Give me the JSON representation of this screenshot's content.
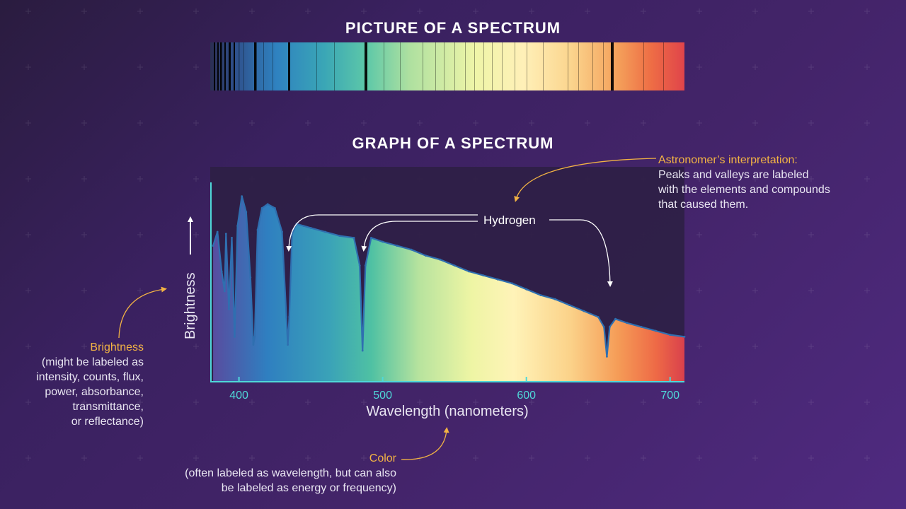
{
  "titles": {
    "picture": "PICTURE OF A SPECTRUM",
    "graph": "GRAPH OF A SPECTRUM"
  },
  "axes": {
    "x_label": "Wavelength (nanometers)",
    "y_label": "Brightness",
    "x_ticks": [
      "400",
      "500",
      "600",
      "700"
    ]
  },
  "annotations": {
    "hydrogen": "Hydrogen",
    "interpretation_title": "Astronomer’s interpretation:",
    "interpretation_lines": [
      "Peaks and valleys are labeled",
      "with the elements and compounds",
      "that caused them."
    ],
    "brightness_title": "Brightness",
    "brightness_lines": [
      "(might be labeled as",
      "intensity, counts, flux,",
      "power, absorbance,",
      "transmittance,",
      "or reflectance)"
    ],
    "color_title": "Color",
    "color_lines": [
      "(often labeled as wavelength, but can also",
      "be labeled as energy or frequency)"
    ]
  },
  "colors": {
    "accent": "#f2b344",
    "axis": "#4fd8d8",
    "curve": "#2f6fb0",
    "plot_bg": "#2e1f45"
  },
  "chart_data": {
    "type": "line",
    "x_unit": "nm",
    "xlim": [
      380,
      710
    ],
    "ylim": [
      0,
      1
    ],
    "x": [
      382,
      385,
      388,
      390,
      391,
      393,
      395,
      397,
      399,
      402,
      405,
      408,
      410,
      411,
      413,
      416,
      420,
      425,
      430,
      433,
      434,
      435,
      437,
      440,
      445,
      450,
      460,
      470,
      480,
      484,
      486,
      488,
      492,
      500,
      510,
      520,
      530,
      540,
      550,
      560,
      570,
      580,
      590,
      600,
      610,
      620,
      630,
      640,
      650,
      654,
      656,
      658,
      662,
      670,
      680,
      690,
      700,
      710
    ],
    "y": [
      0.68,
      0.75,
      0.55,
      0.45,
      0.74,
      0.36,
      0.72,
      0.22,
      0.78,
      0.93,
      0.85,
      0.52,
      0.18,
      0.22,
      0.76,
      0.87,
      0.89,
      0.87,
      0.75,
      0.32,
      0.18,
      0.32,
      0.74,
      0.79,
      0.78,
      0.77,
      0.75,
      0.73,
      0.72,
      0.58,
      0.15,
      0.58,
      0.72,
      0.7,
      0.68,
      0.66,
      0.63,
      0.61,
      0.58,
      0.55,
      0.53,
      0.51,
      0.49,
      0.46,
      0.43,
      0.41,
      0.38,
      0.35,
      0.32,
      0.27,
      0.12,
      0.27,
      0.31,
      0.29,
      0.27,
      0.25,
      0.23,
      0.22
    ],
    "labeled_lines": [
      {
        "name": "Hydrogen",
        "x": 434
      },
      {
        "name": "Hydrogen",
        "x": 486
      },
      {
        "name": "Hydrogen",
        "x": 656
      }
    ]
  }
}
